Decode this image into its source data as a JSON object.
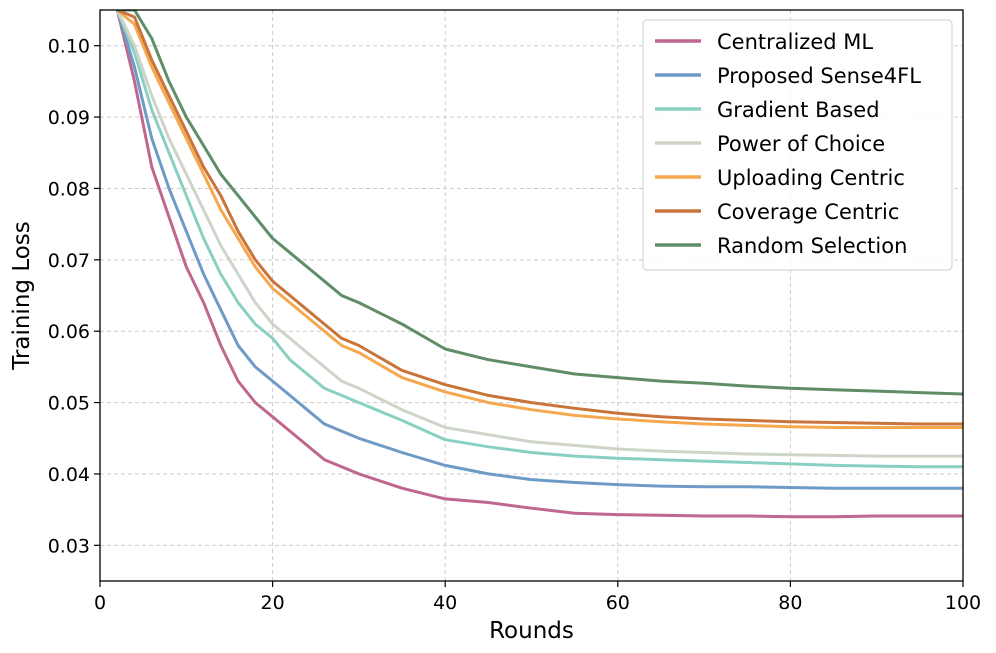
{
  "chart_data": {
    "type": "line",
    "title": "",
    "xlabel": "Rounds",
    "ylabel": "Training Loss",
    "xlim": [
      0,
      100
    ],
    "ylim": [
      0.025,
      0.105
    ],
    "xticks": [
      0,
      20,
      40,
      60,
      80,
      100
    ],
    "yticks": [
      0.03,
      0.04,
      0.05,
      0.06,
      0.07,
      0.08,
      0.09,
      0.1
    ],
    "ytick_labels": [
      "0.03",
      "0.04",
      "0.05",
      "0.06",
      "0.07",
      "0.08",
      "0.09",
      "0.10"
    ],
    "grid": true,
    "legend_position": "top-right",
    "series": [
      {
        "name": "Centralized ML",
        "color": "#c0678f",
        "x": [
          2,
          4,
          6,
          8,
          10,
          12,
          14,
          16,
          18,
          20,
          22,
          24,
          26,
          28,
          30,
          35,
          40,
          45,
          50,
          55,
          60,
          65,
          70,
          75,
          80,
          85,
          90,
          95,
          100
        ],
        "y": [
          0.105,
          0.095,
          0.083,
          0.076,
          0.069,
          0.064,
          0.058,
          0.053,
          0.05,
          0.048,
          0.046,
          0.044,
          0.042,
          0.041,
          0.04,
          0.038,
          0.0365,
          0.036,
          0.0352,
          0.0345,
          0.0343,
          0.0342,
          0.0341,
          0.0341,
          0.034,
          0.034,
          0.0341,
          0.0341,
          0.0341
        ]
      },
      {
        "name": "Proposed Sense4FL",
        "color": "#6e9bc5",
        "x": [
          2,
          4,
          6,
          8,
          10,
          12,
          14,
          16,
          18,
          20,
          22,
          24,
          26,
          28,
          30,
          35,
          40,
          45,
          50,
          55,
          60,
          65,
          70,
          75,
          80,
          85,
          90,
          95,
          100
        ],
        "y": [
          0.105,
          0.097,
          0.087,
          0.08,
          0.074,
          0.068,
          0.063,
          0.058,
          0.055,
          0.053,
          0.051,
          0.049,
          0.047,
          0.046,
          0.045,
          0.043,
          0.0412,
          0.04,
          0.0392,
          0.0388,
          0.0385,
          0.0383,
          0.0382,
          0.0382,
          0.0381,
          0.038,
          0.038,
          0.038,
          0.038
        ]
      },
      {
        "name": "Gradient Based",
        "color": "#8ad0c2",
        "x": [
          2,
          4,
          6,
          8,
          10,
          12,
          14,
          16,
          18,
          20,
          22,
          24,
          26,
          28,
          30,
          35,
          40,
          45,
          50,
          55,
          60,
          65,
          70,
          75,
          80,
          85,
          90,
          95,
          100
        ],
        "y": [
          0.105,
          0.099,
          0.091,
          0.085,
          0.079,
          0.073,
          0.068,
          0.064,
          0.061,
          0.059,
          0.056,
          0.054,
          0.052,
          0.051,
          0.05,
          0.0475,
          0.0448,
          0.0438,
          0.043,
          0.0425,
          0.0422,
          0.042,
          0.0418,
          0.0416,
          0.0414,
          0.0412,
          0.0411,
          0.041,
          0.041
        ]
      },
      {
        "name": "Power of Choice",
        "color": "#cdd5c8",
        "x": [
          2,
          4,
          6,
          8,
          10,
          12,
          14,
          16,
          18,
          20,
          22,
          24,
          26,
          28,
          30,
          35,
          40,
          45,
          50,
          55,
          60,
          65,
          70,
          75,
          80,
          85,
          90,
          95,
          100
        ],
        "y": [
          0.105,
          0.1,
          0.093,
          0.087,
          0.082,
          0.077,
          0.072,
          0.068,
          0.064,
          0.061,
          0.059,
          0.057,
          0.055,
          0.053,
          0.052,
          0.049,
          0.0465,
          0.0455,
          0.0445,
          0.044,
          0.0435,
          0.0432,
          0.043,
          0.0428,
          0.0427,
          0.0426,
          0.0425,
          0.0425,
          0.0425
        ]
      },
      {
        "name": "Uploading Centric",
        "color": "#f5a84e",
        "x": [
          2,
          4,
          6,
          8,
          10,
          12,
          14,
          16,
          18,
          20,
          22,
          24,
          26,
          28,
          30,
          35,
          40,
          45,
          50,
          55,
          60,
          65,
          70,
          75,
          80,
          85,
          90,
          95,
          100
        ],
        "y": [
          0.105,
          0.103,
          0.097,
          0.092,
          0.087,
          0.082,
          0.077,
          0.073,
          0.069,
          0.066,
          0.064,
          0.062,
          0.06,
          0.058,
          0.057,
          0.0535,
          0.0515,
          0.05,
          0.049,
          0.0482,
          0.0477,
          0.0473,
          0.047,
          0.0468,
          0.0466,
          0.0465,
          0.0465,
          0.0465,
          0.0465
        ]
      },
      {
        "name": "Coverage Centric",
        "color": "#c8743a",
        "x": [
          2,
          4,
          6,
          8,
          10,
          12,
          14,
          16,
          18,
          20,
          22,
          24,
          26,
          28,
          30,
          35,
          40,
          45,
          50,
          55,
          60,
          65,
          70,
          75,
          80,
          85,
          90,
          95,
          100
        ],
        "y": [
          0.105,
          0.104,
          0.098,
          0.093,
          0.088,
          0.083,
          0.079,
          0.074,
          0.07,
          0.067,
          0.065,
          0.063,
          0.061,
          0.059,
          0.058,
          0.0545,
          0.0525,
          0.051,
          0.05,
          0.0492,
          0.0485,
          0.048,
          0.0477,
          0.0475,
          0.0473,
          0.0472,
          0.0471,
          0.047,
          0.047
        ]
      },
      {
        "name": "Random Selection",
        "color": "#5f8d68",
        "x": [
          2,
          4,
          6,
          8,
          10,
          12,
          14,
          16,
          18,
          20,
          22,
          24,
          26,
          28,
          30,
          35,
          40,
          45,
          50,
          55,
          60,
          65,
          70,
          75,
          80,
          85,
          90,
          95,
          100
        ],
        "y": [
          0.105,
          0.105,
          0.101,
          0.095,
          0.09,
          0.086,
          0.082,
          0.079,
          0.076,
          0.073,
          0.071,
          0.069,
          0.067,
          0.065,
          0.064,
          0.061,
          0.0575,
          0.056,
          0.055,
          0.054,
          0.0535,
          0.053,
          0.0527,
          0.0523,
          0.052,
          0.0518,
          0.0516,
          0.0514,
          0.0512
        ]
      }
    ]
  }
}
